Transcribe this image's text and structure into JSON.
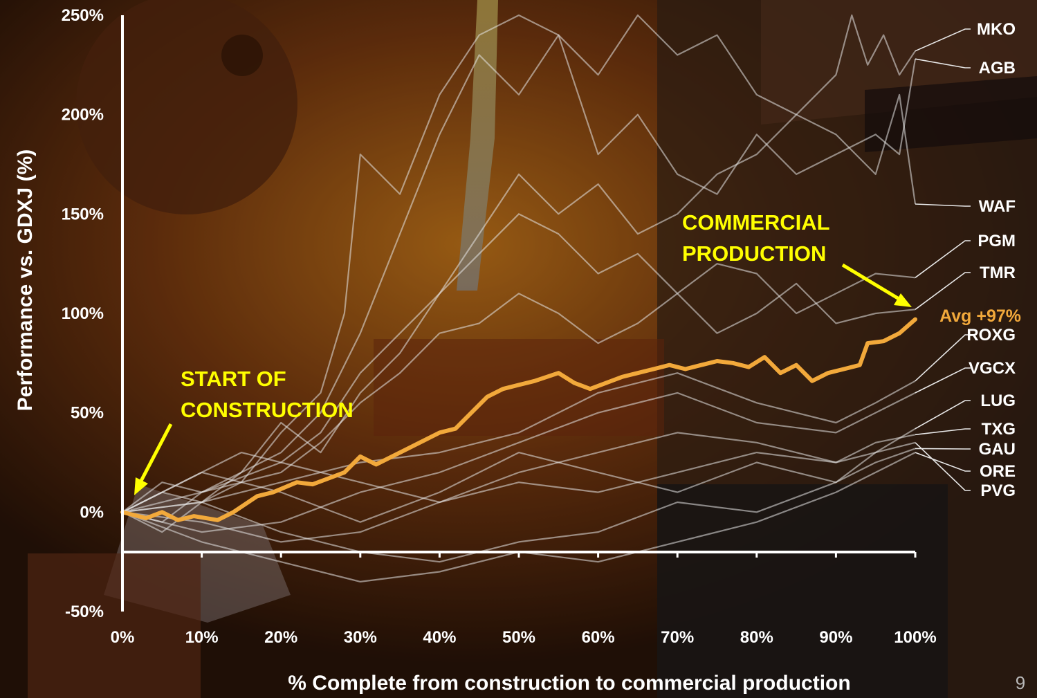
{
  "page_number": "9",
  "colors": {
    "accent": "#f2a93b",
    "annotation": "#ffff00",
    "peer_lines": "#e6e6e6",
    "axis": "#ffffff"
  },
  "annotations": {
    "start_line1": "START OF",
    "start_line2": "CONSTRUCTION",
    "commercial_line1": "COMMERCIAL",
    "commercial_line2": "PRODUCTION"
  },
  "chart_data": {
    "type": "line",
    "title": "",
    "xlabel": "% Complete from construction to commercial production",
    "ylabel": "Performance vs. GDXJ (%)",
    "xlim": [
      0,
      100
    ],
    "ylim": [
      -50,
      250
    ],
    "x_tick_labels": [
      "0%",
      "10%",
      "20%",
      "30%",
      "40%",
      "50%",
      "60%",
      "70%",
      "80%",
      "90%",
      "100%"
    ],
    "y_tick_labels": [
      "250%",
      "200%",
      "150%",
      "100%",
      "50%",
      "0%",
      "-50%"
    ],
    "average_label": "Avg +97%",
    "average_series": {
      "name": "Avg",
      "x": [
        0,
        3,
        5,
        7,
        9,
        12,
        14,
        17,
        19,
        22,
        24,
        26,
        28,
        30,
        32,
        34,
        36,
        38,
        40,
        42,
        44,
        46,
        48,
        50,
        52,
        55,
        57,
        59,
        61,
        63,
        65,
        67,
        69,
        71,
        73,
        75,
        77,
        79,
        81,
        83,
        85,
        87,
        89,
        91,
        93,
        94,
        96,
        98,
        100
      ],
      "y": [
        0,
        -3,
        0,
        -4,
        -2,
        -4,
        0,
        8,
        10,
        15,
        14,
        17,
        20,
        28,
        24,
        28,
        32,
        36,
        40,
        42,
        50,
        58,
        62,
        64,
        66,
        70,
        65,
        62,
        65,
        68,
        70,
        72,
        74,
        72,
        74,
        76,
        75,
        73,
        78,
        70,
        74,
        66,
        70,
        72,
        74,
        85,
        86,
        90,
        97
      ]
    },
    "series": [
      {
        "name": "MKO",
        "x": [
          0,
          5,
          10,
          15,
          20,
          25,
          28,
          30,
          35,
          40,
          45,
          50,
          55,
          60,
          65,
          70,
          75,
          80,
          85,
          90,
          92,
          94,
          96,
          98,
          100
        ],
        "y": [
          0,
          10,
          5,
          15,
          40,
          60,
          100,
          180,
          160,
          210,
          240,
          250,
          240,
          220,
          250,
          230,
          240,
          210,
          200,
          220,
          250,
          225,
          240,
          220,
          232
        ]
      },
      {
        "name": "AGB",
        "x": [
          0,
          5,
          10,
          15,
          20,
          25,
          30,
          35,
          40,
          45,
          50,
          55,
          60,
          65,
          70,
          75,
          80,
          85,
          90,
          95,
          98,
          100
        ],
        "y": [
          0,
          -10,
          5,
          20,
          30,
          50,
          90,
          140,
          190,
          230,
          210,
          240,
          180,
          200,
          170,
          160,
          190,
          170,
          180,
          190,
          180,
          228
        ]
      },
      {
        "name": "WAF",
        "x": [
          0,
          5,
          10,
          15,
          20,
          25,
          30,
          35,
          40,
          45,
          50,
          55,
          60,
          65,
          70,
          75,
          80,
          85,
          90,
          95,
          98,
          100
        ],
        "y": [
          0,
          15,
          10,
          20,
          45,
          30,
          60,
          80,
          110,
          140,
          170,
          150,
          165,
          140,
          150,
          170,
          180,
          200,
          190,
          170,
          210,
          155
        ]
      },
      {
        "name": "PGM",
        "x": [
          0,
          5,
          10,
          15,
          20,
          25,
          30,
          35,
          40,
          45,
          50,
          55,
          60,
          65,
          70,
          75,
          80,
          85,
          90,
          95,
          100
        ],
        "y": [
          0,
          10,
          20,
          30,
          25,
          40,
          70,
          90,
          110,
          130,
          150,
          140,
          120,
          130,
          110,
          125,
          120,
          100,
          110,
          120,
          118
        ]
      },
      {
        "name": "TMR",
        "x": [
          0,
          5,
          10,
          15,
          20,
          25,
          30,
          35,
          40,
          45,
          50,
          55,
          60,
          65,
          70,
          75,
          80,
          85,
          90,
          95,
          100
        ],
        "y": [
          0,
          -5,
          10,
          15,
          20,
          35,
          55,
          70,
          90,
          95,
          110,
          100,
          85,
          95,
          110,
          90,
          100,
          115,
          95,
          100,
          102
        ]
      },
      {
        "name": "ROXG",
        "x": [
          0,
          10,
          20,
          30,
          40,
          50,
          60,
          70,
          80,
          90,
          95,
          100
        ],
        "y": [
          0,
          5,
          15,
          25,
          30,
          40,
          60,
          70,
          55,
          45,
          55,
          66
        ]
      },
      {
        "name": "VGCX",
        "x": [
          0,
          10,
          20,
          30,
          40,
          50,
          60,
          70,
          80,
          90,
          95,
          100
        ],
        "y": [
          0,
          -10,
          -5,
          10,
          20,
          35,
          50,
          60,
          45,
          40,
          50,
          60
        ]
      },
      {
        "name": "LUG",
        "x": [
          0,
          10,
          20,
          30,
          40,
          50,
          60,
          70,
          80,
          90,
          95,
          100
        ],
        "y": [
          0,
          10,
          25,
          15,
          5,
          20,
          30,
          40,
          35,
          25,
          30,
          42
        ]
      },
      {
        "name": "TXG",
        "x": [
          0,
          10,
          20,
          30,
          40,
          50,
          60,
          70,
          80,
          90,
          95,
          100
        ],
        "y": [
          0,
          -5,
          -15,
          -10,
          5,
          15,
          10,
          20,
          30,
          25,
          35,
          39
        ]
      },
      {
        "name": "GAU",
        "x": [
          0,
          10,
          20,
          30,
          40,
          50,
          60,
          70,
          80,
          90,
          95,
          100
        ],
        "y": [
          0,
          5,
          -10,
          -20,
          -25,
          -15,
          -10,
          5,
          0,
          15,
          25,
          32
        ]
      },
      {
        "name": "ORE",
        "x": [
          0,
          10,
          20,
          30,
          40,
          50,
          60,
          70,
          80,
          90,
          95,
          100
        ],
        "y": [
          0,
          -15,
          -25,
          -35,
          -30,
          -20,
          -25,
          -15,
          -5,
          10,
          20,
          30
        ]
      },
      {
        "name": "PVG",
        "x": [
          0,
          10,
          20,
          30,
          40,
          50,
          60,
          70,
          80,
          90,
          95,
          100
        ],
        "y": [
          0,
          20,
          10,
          -5,
          10,
          30,
          20,
          10,
          25,
          15,
          30,
          35
        ]
      }
    ],
    "grid": false,
    "legend": "right-side labels"
  }
}
